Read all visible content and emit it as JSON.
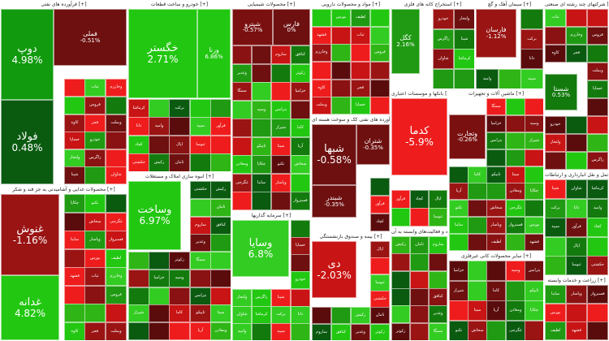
{
  "colors": {
    "strong_up": "#22c711",
    "up": "#33cc22",
    "mid_up": "#1f9a12",
    "weak_up": "#137a0d",
    "deep_up": "#0a5a10",
    "strong_down": "#ee1c1c",
    "down": "#c81414",
    "mid_down": "#9a1414",
    "deep_down": "#6e1010",
    "dark_down": "#5a0c0c"
  },
  "sections": [
    {
      "title": "فرآورده های نفتی [+]",
      "key": "refinery",
      "tiles": [
        {
          "symbol": "دوپ",
          "change": "4.98%",
          "color": "#119a0e",
          "big": true
        },
        {
          "symbol": "فولاد",
          "change": "0.48%",
          "color": "#0a5a10",
          "big": true
        },
        {
          "symbol": "فملی",
          "change": "-0.51%",
          "color": "#6e1010",
          "big": false
        }
      ]
    },
    {
      "title": "خودرو و ساخت قطعات [+]",
      "key": "auto",
      "tiles": [
        {
          "symbol": "خگستر",
          "change": "2.71%",
          "color": "#22c711",
          "big": true
        },
        {
          "symbol": "ورنا",
          "change": "6.86%",
          "color": "#22c711",
          "big": false
        }
      ]
    },
    {
      "title": "محصولات شیمیایی [+]",
      "key": "chem",
      "tiles": [
        {
          "symbol": "شپترو",
          "change": "-0.57%",
          "color": "#7a1010",
          "big": false
        },
        {
          "symbol": "فارس",
          "change": "0%",
          "color": "#6e1010",
          "big": false
        }
      ]
    },
    {
      "title": "مواد و محصولات دارویی [+]",
      "key": "pharma",
      "tiles": []
    },
    {
      "title": "استخراج کانه های فلزی [+]",
      "key": "mining",
      "tiles": [
        {
          "symbol": "کگل",
          "change": "2.16%",
          "color": "#1f9a12",
          "big": false
        }
      ]
    },
    {
      "title": "سیمان آهک و گچ [+]",
      "key": "cement",
      "tiles": [
        {
          "symbol": "فارسان",
          "change": "-1.12%",
          "color": "#9a1414",
          "big": false
        }
      ]
    },
    {
      "title": "بانکها و موسسات اعتباری [+]",
      "key": "banks",
      "tiles": [
        {
          "symbol": "کدما",
          "change": "-5.9%",
          "color": "#ee1c1c",
          "big": true
        }
      ]
    },
    {
      "title": "انبوه سازی املاک و مستغلات [+]",
      "key": "realestate",
      "tiles": [
        {
          "symbol": "وساخت",
          "change": "6.97%",
          "color": "#22c711",
          "big": true
        }
      ]
    },
    {
      "title": "محصولات غذایی و آشامیدنی به جز قند و شکر [+]",
      "key": "food",
      "tiles": [
        {
          "symbol": "غنوش",
          "change": "-1.16%",
          "color": "#9a1414",
          "big": true
        },
        {
          "symbol": "غدانه",
          "change": "4.82%",
          "color": "#22c711",
          "big": true
        }
      ]
    },
    {
      "title": "سرمایه گذاریها [+]",
      "key": "invest",
      "tiles": [
        {
          "symbol": "وسایا",
          "change": "6.8%",
          "color": "#33cc22",
          "big": true
        }
      ]
    },
    {
      "title": "فرآورده های نفتی کک و سوخت هسته ای [+]",
      "key": "oil",
      "tiles": [
        {
          "symbol": "شبها",
          "change": "-0.58%",
          "color": "#6e1010",
          "big": true
        },
        {
          "symbol": "شتران",
          "change": "-0.35%",
          "color": "#6e1010",
          "big": false
        },
        {
          "symbol": "شبندر",
          "change": "-0.35%",
          "color": "#6e1010",
          "big": false
        }
      ]
    },
    {
      "title": "بیمه و صندوق بازنشستگی [+]",
      "key": "insurance",
      "tiles": [
        {
          "symbol": "دی",
          "change": "-2.03%",
          "color": "#c81414",
          "big": true
        }
      ]
    },
    {
      "title": "ماشین آلات و تجهیزات [+]",
      "key": "machinery",
      "tiles": [
        {
          "symbol": "وتجارت",
          "change": "-0.26%",
          "color": "#7a1010",
          "big": false
        }
      ]
    },
    {
      "title": "شرکتهای چند رشته ای صنعتی [+]",
      "key": "multi",
      "tiles": [
        {
          "symbol": "شستا",
          "change": "0.53%",
          "color": "#137a0d",
          "big": false
        }
      ]
    },
    {
      "title": "حمل و نقل انبارداری و ارتباطات [+]",
      "key": "transport",
      "tiles": []
    },
    {
      "title": "رایانه و فعالیت‌های وابسته به آن [+]",
      "key": "it",
      "tiles": []
    },
    {
      "title": "سایر محصولات کانی غیرفلزی [+]",
      "key": "nonmetal",
      "tiles": []
    },
    {
      "title": "زراعت و خدمات وابسته [+]",
      "key": "agri",
      "tiles": []
    }
  ],
  "filler_labels": [
    "ثبات",
    "وخارزم",
    "فروس",
    "کاوه",
    "فجر",
    "وبملت",
    "خساپا",
    "خودرو",
    "ولتجار",
    "زاگرس",
    "شپنا",
    "شاوان",
    "کرماشا",
    "برکت",
    "دانا",
    "وامید",
    "سپید",
    "فرآور",
    "کچاد",
    "اپال",
    "ثنوسا",
    "حکشتی",
    "رکیش",
    "ثامان",
    "ساروم",
    "کبافق",
    "وغدیر",
    "زکوثر",
    "سمگا",
    "خزامیا",
    "وسپه",
    "بترانس",
    "شیراز",
    "کاما",
    "تاپیکو",
    "سیتا",
    "آریا",
    "ومعادن",
    "چکاپا",
    "تکنو",
    "سخاش",
    "غگرجی",
    "ساینا",
    "وپاسار",
    "فسبزوار",
    "بورس",
    "لطیف",
    "قشهد"
  ]
}
